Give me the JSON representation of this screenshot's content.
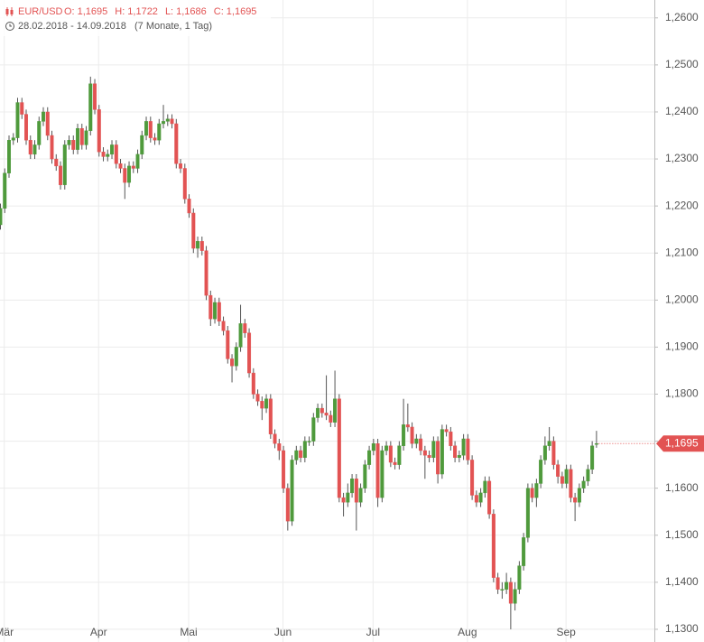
{
  "chart_data": {
    "type": "candlestick",
    "symbol": "EUR/USD",
    "header_ohlc": [
      {
        "label": "O:",
        "value": "1,1695"
      },
      {
        "label": "H:",
        "value": "1,1722"
      },
      {
        "label": "L:",
        "value": "1,1686"
      },
      {
        "label": "C:",
        "value": "1,1695"
      }
    ],
    "date_range": "28.02.2018 - 14.09.2018",
    "duration": "(7 Monate, 1 Tag)",
    "last_price": {
      "value": 1.1695,
      "label": "1,1695"
    },
    "up_color": "#4f9a3c",
    "down_color": "#e25353",
    "grid": true,
    "xlim": [
      0,
      152.6
    ],
    "ylim": [
      1.1273,
      1.2638
    ],
    "xticks": [
      {
        "value": 1,
        "label": "Mär"
      },
      {
        "value": 23,
        "label": "Apr"
      },
      {
        "value": 44,
        "label": "Mai"
      },
      {
        "value": 66,
        "label": "Jun"
      },
      {
        "value": 87,
        "label": "Jul"
      },
      {
        "value": 109,
        "label": "Aug"
      },
      {
        "value": 132,
        "label": "Sep"
      }
    ],
    "yticks": [
      {
        "value": 1.13,
        "label": "1,1300"
      },
      {
        "value": 1.14,
        "label": "1,1400"
      },
      {
        "value": 1.15,
        "label": "1,1500"
      },
      {
        "value": 1.16,
        "label": "1,1600"
      },
      {
        "value": 1.17,
        "label": "1,1700"
      },
      {
        "value": 1.18,
        "label": "1,1800"
      },
      {
        "value": 1.19,
        "label": "1,1900"
      },
      {
        "value": 1.2,
        "label": "1,2000"
      },
      {
        "value": 1.21,
        "label": "1,2100"
      },
      {
        "value": 1.22,
        "label": "1,2200"
      },
      {
        "value": 1.23,
        "label": "1,2300"
      },
      {
        "value": 1.24,
        "label": "1,2400"
      },
      {
        "value": 1.25,
        "label": "1,2500"
      },
      {
        "value": 1.26,
        "label": "1,2600"
      }
    ],
    "ohlc": [
      [
        1.216,
        1.2205,
        1.215,
        1.2195
      ],
      [
        1.2195,
        1.228,
        1.2185,
        1.227
      ],
      [
        1.227,
        1.235,
        1.226,
        1.234
      ],
      [
        1.234,
        1.2355,
        1.233,
        1.2345
      ],
      [
        1.2345,
        1.243,
        1.2335,
        1.242
      ],
      [
        1.242,
        1.243,
        1.2385,
        1.2395
      ],
      [
        1.2395,
        1.2405,
        1.233,
        1.234
      ],
      [
        1.234,
        1.235,
        1.23,
        1.231
      ],
      [
        1.231,
        1.234,
        1.23,
        1.233
      ],
      [
        1.233,
        1.239,
        1.232,
        1.238
      ],
      [
        1.238,
        1.241,
        1.237,
        1.24
      ],
      [
        1.24,
        1.241,
        1.234,
        1.235
      ],
      [
        1.235,
        1.236,
        1.229,
        1.23
      ],
      [
        1.23,
        1.231,
        1.2275,
        1.2285
      ],
      [
        1.2285,
        1.2295,
        1.2235,
        1.2245
      ],
      [
        1.2245,
        1.234,
        1.2235,
        1.233
      ],
      [
        1.233,
        1.235,
        1.232,
        1.234
      ],
      [
        1.234,
        1.235,
        1.231,
        1.232
      ],
      [
        1.232,
        1.2375,
        1.231,
        1.2365
      ],
      [
        1.2365,
        1.2375,
        1.232,
        1.233
      ],
      [
        1.233,
        1.237,
        1.232,
        1.236
      ],
      [
        1.236,
        1.2475,
        1.235,
        1.246
      ],
      [
        1.246,
        1.247,
        1.2395,
        1.2405
      ],
      [
        1.2405,
        1.2415,
        1.2305,
        1.2315
      ],
      [
        1.2315,
        1.2325,
        1.2295,
        1.2305
      ],
      [
        1.2305,
        1.232,
        1.2295,
        1.231
      ],
      [
        1.231,
        1.234,
        1.23,
        1.233
      ],
      [
        1.233,
        1.234,
        1.228,
        1.229
      ],
      [
        1.229,
        1.23,
        1.227,
        1.228
      ],
      [
        1.228,
        1.229,
        1.2215,
        1.225
      ],
      [
        1.225,
        1.2295,
        1.224,
        1.2285
      ],
      [
        1.2285,
        1.2295,
        1.227,
        1.228
      ],
      [
        1.228,
        1.232,
        1.227,
        1.231
      ],
      [
        1.231,
        1.236,
        1.23,
        1.235
      ],
      [
        1.235,
        1.239,
        1.234,
        1.238
      ],
      [
        1.238,
        1.239,
        1.2335,
        1.2345
      ],
      [
        1.2345,
        1.2355,
        1.233,
        1.234
      ],
      [
        1.234,
        1.2385,
        1.233,
        1.2375
      ],
      [
        1.2375,
        1.2415,
        1.2365,
        1.238
      ],
      [
        1.238,
        1.2395,
        1.237,
        1.2385
      ],
      [
        1.2385,
        1.2395,
        1.2365,
        1.2375
      ],
      [
        1.2375,
        1.2385,
        1.228,
        1.229
      ],
      [
        1.229,
        1.23,
        1.227,
        1.228
      ],
      [
        1.228,
        1.229,
        1.2205,
        1.2215
      ],
      [
        1.2215,
        1.2225,
        1.2175,
        1.2185
      ],
      [
        1.2185,
        1.2195,
        1.21,
        1.211
      ],
      [
        1.211,
        1.2135,
        1.209,
        1.2125
      ],
      [
        1.2125,
        1.2135,
        1.2095,
        1.2105
      ],
      [
        1.2105,
        1.2115,
        1.2,
        1.201
      ],
      [
        1.201,
        1.202,
        1.1945,
        1.196
      ],
      [
        1.196,
        1.2005,
        1.195,
        1.1995
      ],
      [
        1.1995,
        1.2005,
        1.1945,
        1.1955
      ],
      [
        1.1955,
        1.1965,
        1.1925,
        1.1935
      ],
      [
        1.1935,
        1.1945,
        1.1865,
        1.1875
      ],
      [
        1.1875,
        1.1885,
        1.1825,
        1.186
      ],
      [
        1.186,
        1.191,
        1.185,
        1.19
      ],
      [
        1.19,
        1.199,
        1.189,
        1.195
      ],
      [
        1.195,
        1.196,
        1.192,
        1.193
      ],
      [
        1.193,
        1.194,
        1.1835,
        1.1845
      ],
      [
        1.1845,
        1.1855,
        1.179,
        1.18
      ],
      [
        1.18,
        1.181,
        1.1775,
        1.1785
      ],
      [
        1.1785,
        1.1795,
        1.1745,
        1.177
      ],
      [
        1.177,
        1.18,
        1.176,
        1.179
      ],
      [
        1.179,
        1.18,
        1.1705,
        1.1715
      ],
      [
        1.1715,
        1.1725,
        1.1685,
        1.1695
      ],
      [
        1.1695,
        1.1705,
        1.166,
        1.168
      ],
      [
        1.168,
        1.169,
        1.159,
        1.16
      ],
      [
        1.16,
        1.161,
        1.151,
        1.153
      ],
      [
        1.153,
        1.167,
        1.152,
        1.166
      ],
      [
        1.166,
        1.169,
        1.165,
        1.168
      ],
      [
        1.168,
        1.169,
        1.1655,
        1.1665
      ],
      [
        1.1665,
        1.171,
        1.1655,
        1.17
      ],
      [
        1.17,
        1.171,
        1.169,
        1.17
      ],
      [
        1.17,
        1.176,
        1.169,
        1.175
      ],
      [
        1.175,
        1.178,
        1.174,
        1.177
      ],
      [
        1.177,
        1.178,
        1.175,
        1.176
      ],
      [
        1.176,
        1.184,
        1.1745,
        1.1755
      ],
      [
        1.1755,
        1.1765,
        1.173,
        1.174
      ],
      [
        1.174,
        1.185,
        1.173,
        1.179
      ],
      [
        1.179,
        1.18,
        1.157,
        1.158
      ],
      [
        1.158,
        1.159,
        1.154,
        1.157
      ],
      [
        1.157,
        1.161,
        1.156,
        1.159
      ],
      [
        1.159,
        1.163,
        1.158,
        1.162
      ],
      [
        1.162,
        1.163,
        1.151,
        1.157
      ],
      [
        1.157,
        1.161,
        1.156,
        1.16
      ],
      [
        1.16,
        1.166,
        1.159,
        1.165
      ],
      [
        1.165,
        1.169,
        1.164,
        1.168
      ],
      [
        1.168,
        1.1705,
        1.167,
        1.1695
      ],
      [
        1.1695,
        1.1705,
        1.156,
        1.158
      ],
      [
        1.158,
        1.169,
        1.157,
        1.168
      ],
      [
        1.168,
        1.17,
        1.167,
        1.169
      ],
      [
        1.169,
        1.17,
        1.1645,
        1.1655
      ],
      [
        1.1655,
        1.1665,
        1.164,
        1.165
      ],
      [
        1.165,
        1.17,
        1.164,
        1.169
      ],
      [
        1.169,
        1.179,
        1.168,
        1.1735
      ],
      [
        1.1735,
        1.178,
        1.172,
        1.173
      ],
      [
        1.173,
        1.174,
        1.1685,
        1.1695
      ],
      [
        1.1695,
        1.1715,
        1.1685,
        1.1705
      ],
      [
        1.1705,
        1.1715,
        1.167,
        1.168
      ],
      [
        1.168,
        1.169,
        1.162,
        1.167
      ],
      [
        1.167,
        1.168,
        1.1655,
        1.1665
      ],
      [
        1.1665,
        1.171,
        1.1655,
        1.17
      ],
      [
        1.17,
        1.171,
        1.161,
        1.163
      ],
      [
        1.163,
        1.1735,
        1.162,
        1.1725
      ],
      [
        1.1725,
        1.1735,
        1.171,
        1.172
      ],
      [
        1.172,
        1.173,
        1.168,
        1.169
      ],
      [
        1.169,
        1.17,
        1.1655,
        1.1665
      ],
      [
        1.1665,
        1.168,
        1.1655,
        1.167
      ],
      [
        1.167,
        1.1715,
        1.166,
        1.1705
      ],
      [
        1.1705,
        1.1715,
        1.165,
        1.166
      ],
      [
        1.166,
        1.167,
        1.1575,
        1.1585
      ],
      [
        1.1585,
        1.1595,
        1.156,
        1.157
      ],
      [
        1.157,
        1.16,
        1.156,
        1.159
      ],
      [
        1.159,
        1.1625,
        1.158,
        1.1615
      ],
      [
        1.1615,
        1.1625,
        1.1535,
        1.1545
      ],
      [
        1.1545,
        1.1555,
        1.14,
        1.141
      ],
      [
        1.141,
        1.142,
        1.1375,
        1.1385
      ],
      [
        1.1385,
        1.14,
        1.1365,
        1.1385
      ],
      [
        1.1385,
        1.142,
        1.1375,
        1.14
      ],
      [
        1.14,
        1.141,
        1.13,
        1.1355
      ],
      [
        1.1355,
        1.14,
        1.134,
        1.1385
      ],
      [
        1.1385,
        1.1445,
        1.1375,
        1.1435
      ],
      [
        1.1435,
        1.1505,
        1.1425,
        1.1495
      ],
      [
        1.1495,
        1.161,
        1.1485,
        1.16
      ],
      [
        1.16,
        1.161,
        1.157,
        1.158
      ],
      [
        1.158,
        1.162,
        1.156,
        1.161
      ],
      [
        1.161,
        1.167,
        1.16,
        1.166
      ],
      [
        1.166,
        1.171,
        1.165,
        1.169
      ],
      [
        1.169,
        1.173,
        1.168,
        1.17
      ],
      [
        1.17,
        1.171,
        1.164,
        1.165
      ],
      [
        1.165,
        1.166,
        1.161,
        1.1625
      ],
      [
        1.1625,
        1.1635,
        1.16,
        1.161
      ],
      [
        1.161,
        1.165,
        1.16,
        1.164
      ],
      [
        1.164,
        1.165,
        1.157,
        1.158
      ],
      [
        1.158,
        1.159,
        1.153,
        1.157
      ],
      [
        1.157,
        1.161,
        1.156,
        1.16
      ],
      [
        1.16,
        1.1625,
        1.159,
        1.1615
      ],
      [
        1.1615,
        1.165,
        1.1605,
        1.164
      ],
      [
        1.164,
        1.17,
        1.163,
        1.169
      ],
      [
        1.1695,
        1.1722,
        1.1686,
        1.1695
      ]
    ]
  }
}
